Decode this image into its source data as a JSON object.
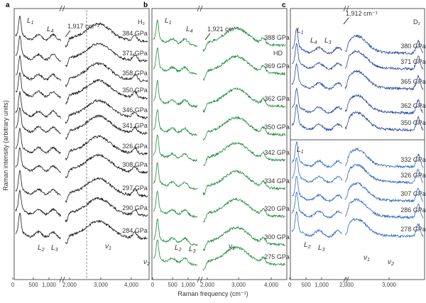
{
  "y_axis_label": "Raman intensity (arbitrary units)",
  "x_axis_label": "Raman frequency (cm⁻¹)",
  "chart_data": [
    {
      "type": "line",
      "panel": "a",
      "sample": "H₂",
      "color": "#1a1a1a",
      "x_ticks": [
        "0",
        "500",
        "1,000",
        "2,000",
        "3,000",
        "4,000"
      ],
      "axis_break": true,
      "annotation": "1,917 cm⁻¹",
      "peak_labels": [
        "L1",
        "L4",
        "L2",
        "L3",
        "ν1",
        "ν2"
      ],
      "series": [
        {
          "name": "384 GPa"
        },
        {
          "name": "371 GPa"
        },
        {
          "name": "358 GPa"
        },
        {
          "name": "350 GPa"
        },
        {
          "name": "346 GPa"
        },
        {
          "name": "341 GPa"
        },
        {
          "name": "326 GPa"
        },
        {
          "name": "308 GPa"
        },
        {
          "name": "297 GPa"
        },
        {
          "name": "290 GPa"
        },
        {
          "name": "284 GPa"
        }
      ]
    },
    {
      "type": "line",
      "panel": "b",
      "sample": "HD",
      "color": "#1e8c3c",
      "x_ticks": [
        "0",
        "500",
        "1,000",
        "2,000",
        "3,000",
        "4,000"
      ],
      "axis_break": true,
      "annotation": "1,921 cm⁻¹",
      "peak_labels": [
        "L1",
        "L4",
        "L2",
        "L3",
        "ν1"
      ],
      "series": [
        {
          "name": "388 GPa"
        },
        {
          "name": "369 GPa"
        },
        {
          "name": "362 GPa"
        },
        {
          "name": "350 GPa"
        },
        {
          "name": "342 GPa"
        },
        {
          "name": "334 GPa"
        },
        {
          "name": "320 GPa"
        },
        {
          "name": "300 GPa"
        },
        {
          "name": "275 GPa"
        }
      ]
    },
    {
      "type": "line",
      "panel": "c",
      "sample": "D₂",
      "color": "#2a4aa0",
      "color_lower": "#2f6cc0",
      "x_ticks": [
        "0",
        "500",
        "1,000",
        "2,000",
        "3,000"
      ],
      "axis_break": true,
      "annotation": "1,912 cm⁻¹",
      "peak_labels": [
        "L1",
        "L4",
        "L3",
        "L1",
        "L2",
        "L3",
        "ν1",
        "ν2"
      ],
      "series": [
        {
          "name": "380 GPa"
        },
        {
          "name": "371 GPa"
        },
        {
          "name": "365 GPa"
        },
        {
          "name": "362 GPa"
        },
        {
          "name": "350 GPa"
        },
        {
          "name": "332 GPa"
        },
        {
          "name": "326 GPa"
        },
        {
          "name": "307 GPa"
        },
        {
          "name": "286 GPa"
        },
        {
          "name": "278 GPa"
        }
      ]
    }
  ]
}
